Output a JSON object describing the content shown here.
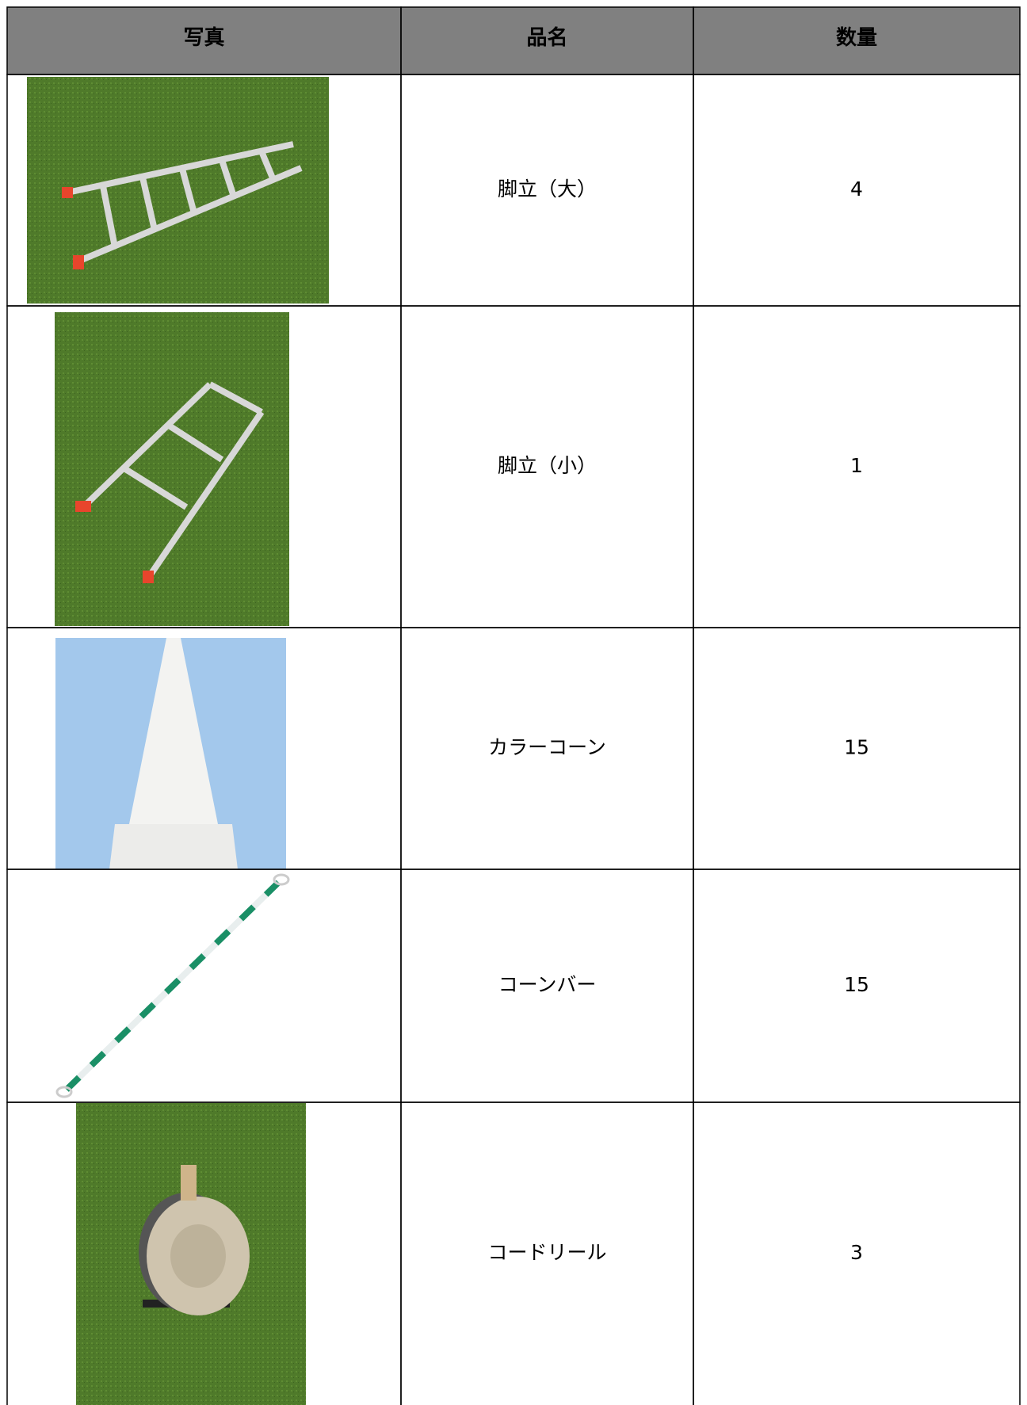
{
  "table": {
    "header": [
      "写真",
      "品名",
      "数量"
    ],
    "rows": [
      [
        "脚立（大）",
        4
      ],
      [
        "脚立（小）",
        1
      ],
      [
        "カラーコーン",
        15
      ],
      [
        "コーンバー",
        15
      ],
      [
        "コードリール",
        3
      ]
    ]
  }
}
